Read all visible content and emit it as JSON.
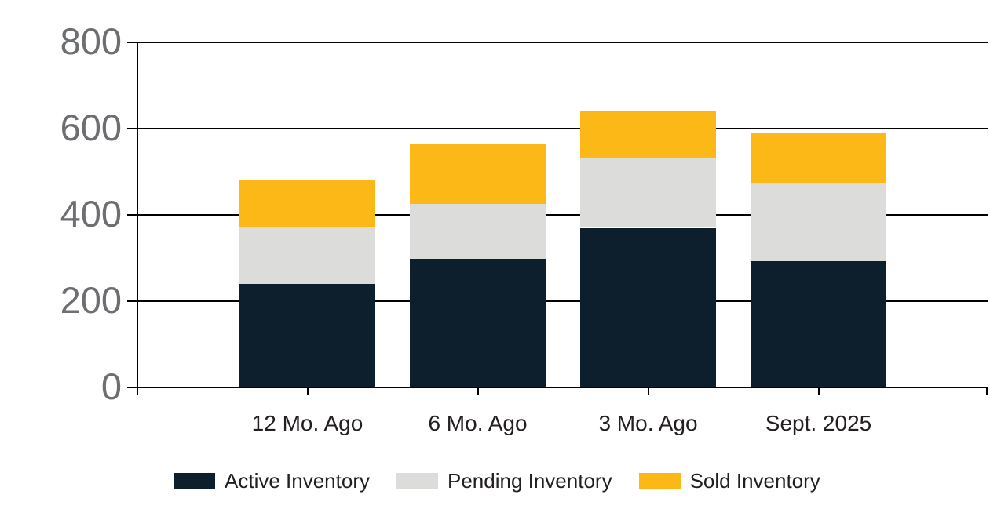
{
  "chart_data": {
    "type": "bar",
    "stacked": true,
    "categories": [
      "12 Mo. Ago",
      "6 Mo. Ago",
      "3 Mo. Ago",
      "Sept. 2025"
    ],
    "series": [
      {
        "name": "Active Inventory",
        "color": "#0d1f2d",
        "values": [
          240,
          299,
          370,
          293
        ]
      },
      {
        "name": "Pending Inventory",
        "color": "#dcdcdb",
        "values": [
          132,
          127,
          162,
          182
        ]
      },
      {
        "name": "Sold Inventory",
        "color": "#fbb817",
        "values": [
          108,
          140,
          110,
          115
        ]
      }
    ],
    "stack_totals": [
      480,
      566,
      642,
      590
    ],
    "ylim": [
      0,
      800
    ],
    "yticks": [
      0,
      200,
      400,
      600,
      800
    ],
    "grid": "horizontal",
    "legend_position": "bottom"
  },
  "style": {
    "background": "#ffffff",
    "axis_color": "#000000",
    "ytick_label_color": "#6d6e71",
    "xtick_label_color": "#231f20",
    "legend_label_color": "#231f20"
  }
}
